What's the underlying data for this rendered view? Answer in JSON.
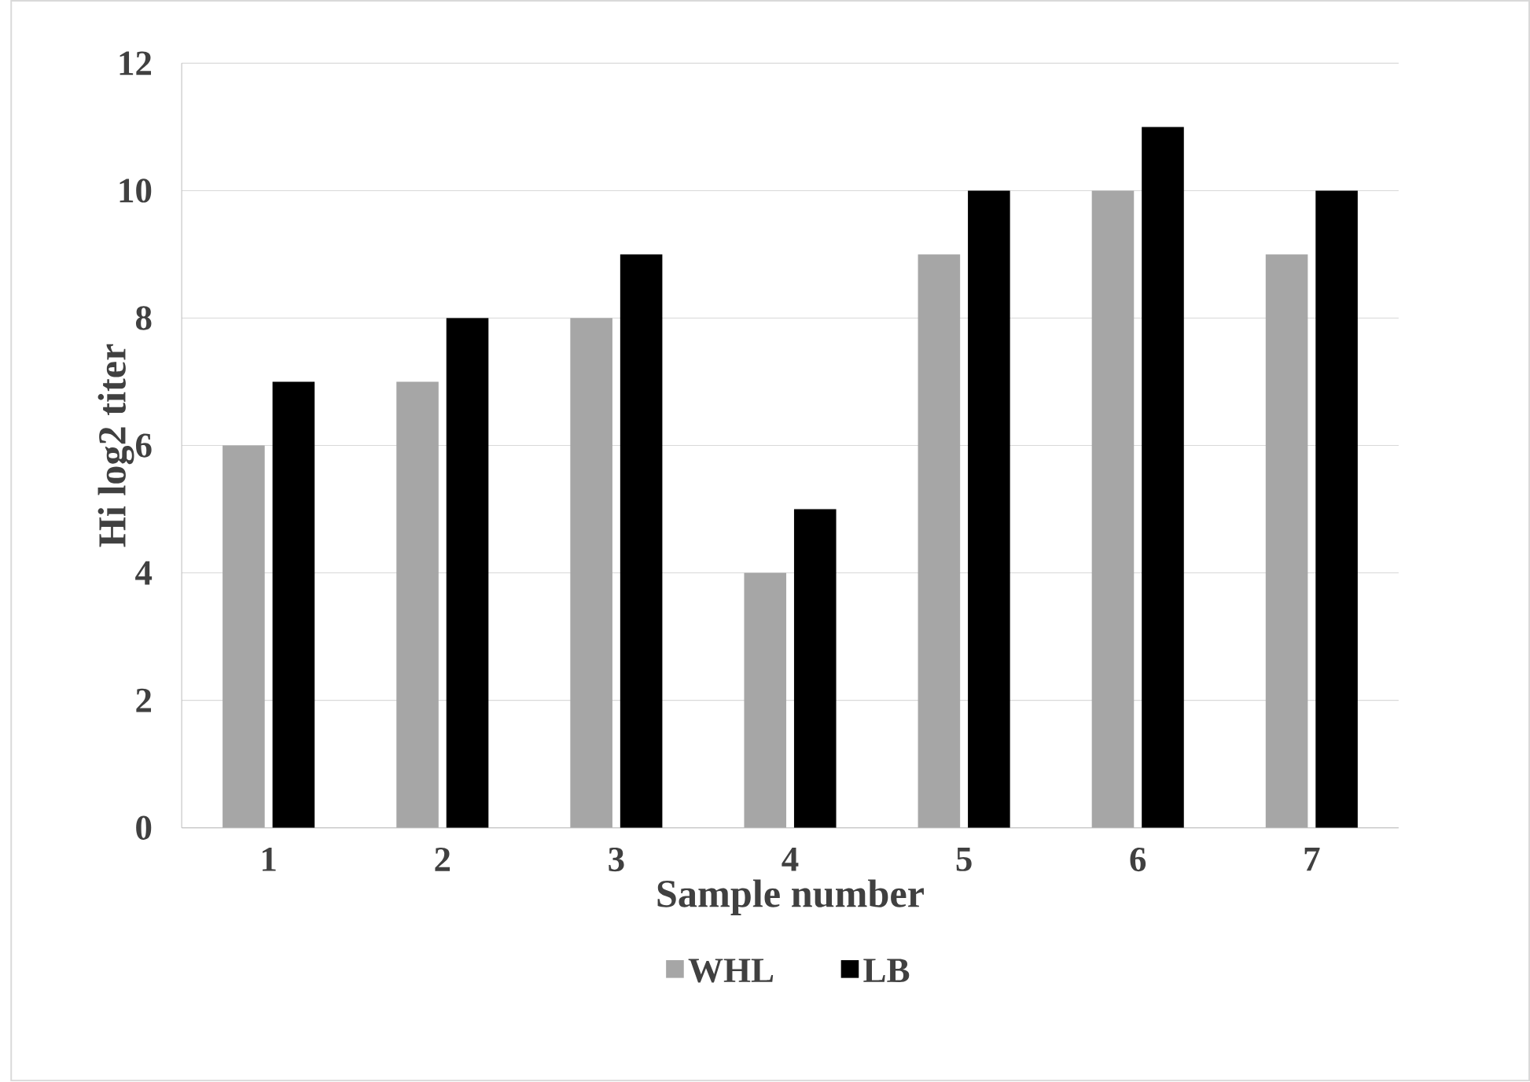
{
  "chart_data": {
    "type": "bar",
    "xlabel": "Sample number",
    "ylabel": "Hi log2 titer",
    "categories": [
      "1",
      "2",
      "3",
      "4",
      "5",
      "6",
      "7"
    ],
    "series": [
      {
        "name": "WHL",
        "color": "#a6a6a6",
        "values": [
          6,
          7,
          8,
          4,
          9,
          10,
          9
        ]
      },
      {
        "name": "LB",
        "color": "#000000",
        "values": [
          7,
          8,
          9,
          5,
          10,
          11,
          10
        ]
      }
    ],
    "ylim": [
      0,
      12
    ],
    "yticks": [
      0,
      2,
      4,
      6,
      8,
      10,
      12
    ],
    "grid": "y",
    "legend": "bottom"
  }
}
